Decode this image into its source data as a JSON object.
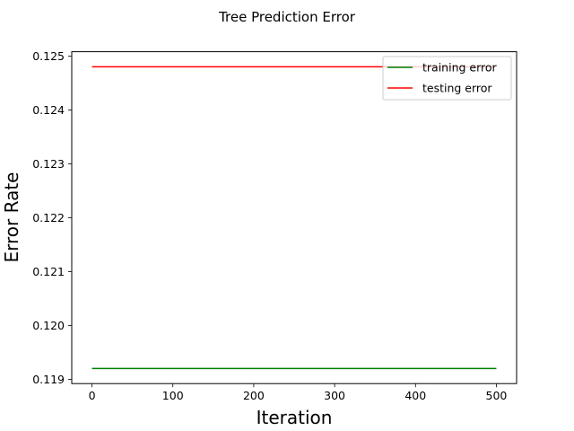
{
  "chart_data": {
    "type": "line",
    "title": "Tree Prediction Error",
    "xlabel": "Iteration",
    "ylabel": "Error Rate",
    "xlim": [
      -25,
      525
    ],
    "ylim": [
      0.11892,
      0.12508
    ],
    "xticks": [
      0,
      100,
      200,
      300,
      400,
      500
    ],
    "xtick_labels": [
      "0",
      "100",
      "200",
      "300",
      "400",
      "500"
    ],
    "yticks": [
      0.119,
      0.12,
      0.121,
      0.122,
      0.123,
      0.124,
      0.125
    ],
    "ytick_labels": [
      "0.119",
      "0.120",
      "0.121",
      "0.122",
      "0.123",
      "0.124",
      "0.125"
    ],
    "grid": false,
    "legend_position": "top-right",
    "series": [
      {
        "name": "training error",
        "color": "#008000",
        "x": [
          0,
          500
        ],
        "y": [
          0.1192,
          0.1192
        ]
      },
      {
        "name": "testing error",
        "color": "#ff0000",
        "x": [
          0,
          500
        ],
        "y": [
          0.1248,
          0.1248
        ]
      }
    ]
  }
}
